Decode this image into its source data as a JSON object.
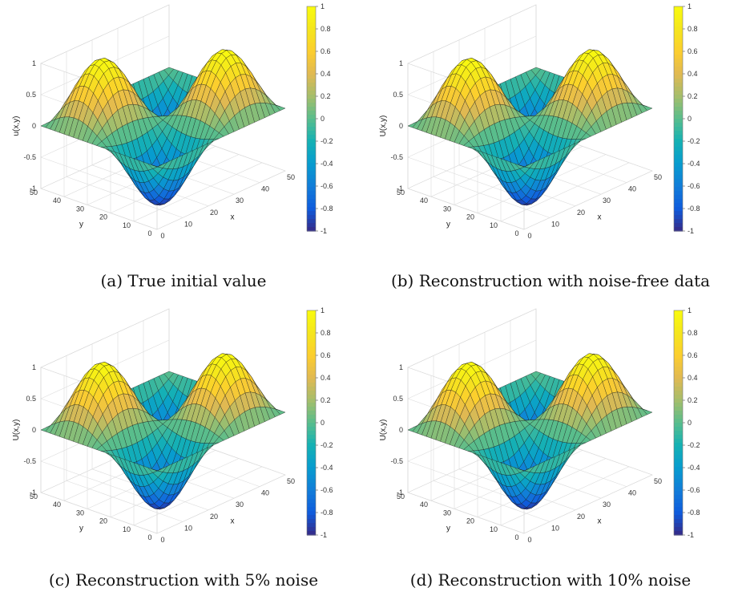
{
  "chart_data": [
    {
      "type": "surface",
      "caption": "(a) True initial value",
      "xlabel": "x",
      "ylabel": "y",
      "zlabel": "u(x,y)",
      "xlim": [
        0,
        50
      ],
      "ylim": [
        0,
        50
      ],
      "zlim": [
        -1,
        1
      ],
      "xticks": [
        0,
        10,
        20,
        30,
        40,
        50
      ],
      "yticks": [
        0,
        10,
        20,
        30,
        40,
        50
      ],
      "zticks": [
        -1,
        -0.5,
        0,
        0.5,
        1
      ],
      "colorbar": {
        "ticks": [
          -1,
          -0.8,
          -0.6,
          -0.4,
          -0.2,
          0,
          0.2,
          0.4,
          0.6,
          0.8,
          1
        ],
        "colormap": "parula"
      },
      "grid": true,
      "peak_amplitude": 1
    },
    {
      "type": "surface",
      "caption": "(b) Reconstruction with noise-free data",
      "xlabel": "x",
      "ylabel": "y",
      "zlabel": "U(x,y)",
      "xlim": [
        0,
        50
      ],
      "ylim": [
        0,
        50
      ],
      "zlim": [
        -1,
        1
      ],
      "xticks": [
        0,
        10,
        20,
        30,
        40,
        50
      ],
      "yticks": [
        0,
        10,
        20,
        30,
        40,
        50
      ],
      "zticks": [
        -1,
        -0.5,
        0,
        0.5,
        1
      ],
      "colorbar": {
        "ticks": [
          -1,
          -0.8,
          -0.6,
          -0.4,
          -0.2,
          0,
          0.2,
          0.4,
          0.6,
          0.8,
          1
        ],
        "colormap": "parula"
      },
      "grid": true,
      "peak_amplitude": 1
    },
    {
      "type": "surface",
      "caption": "(c) Reconstruction with 5% noise",
      "xlabel": "x",
      "ylabel": "y",
      "zlabel": "U(x,y)",
      "xlim": [
        0,
        50
      ],
      "ylim": [
        0,
        50
      ],
      "zlim": [
        -1,
        1
      ],
      "xticks": [
        0,
        10,
        20,
        30,
        40,
        50
      ],
      "yticks": [
        0,
        10,
        20,
        30,
        40,
        50
      ],
      "zticks": [
        -1,
        -0.5,
        0,
        0.5,
        1
      ],
      "colorbar": {
        "ticks": [
          -1,
          -0.8,
          -0.6,
          -0.4,
          -0.2,
          0,
          0.2,
          0.4,
          0.6,
          0.8,
          1
        ],
        "colormap": "parula"
      },
      "grid": true,
      "peak_amplitude": 1
    },
    {
      "type": "surface",
      "caption": "(d) Reconstruction with 10% noise",
      "xlabel": "x",
      "ylabel": "y",
      "zlabel": "U(x,y)",
      "xlim": [
        0,
        50
      ],
      "ylim": [
        0,
        50
      ],
      "zlim": [
        -1,
        1
      ],
      "xticks": [
        0,
        10,
        20,
        30,
        40,
        50
      ],
      "yticks": [
        0,
        10,
        20,
        30,
        40,
        50
      ],
      "zticks": [
        -1,
        -0.5,
        0,
        0.5,
        1
      ],
      "colorbar": {
        "ticks": [
          -1,
          -0.8,
          -0.6,
          -0.4,
          -0.2,
          0,
          0.2,
          0.4,
          0.6,
          0.8,
          1
        ],
        "colormap": "parula"
      },
      "grid": true,
      "peak_amplitude": 1
    }
  ]
}
